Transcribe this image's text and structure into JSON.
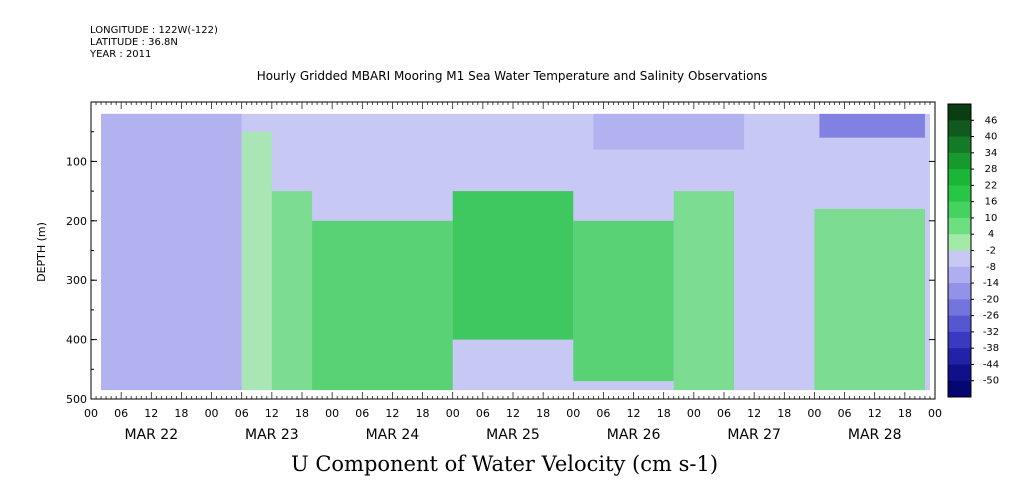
{
  "header": {
    "longitude": "LONGITUDE : 122W(-122)",
    "latitude": "LATITUDE : 36.8N",
    "year": "YEAR : 2011"
  },
  "chart_data": {
    "type": "heatmap",
    "title": "Hourly Gridded MBARI Mooring M1 Sea Water Temperature and Salinity Observations",
    "subtitle": "U Component of Water Velocity (cm s-1)",
    "ylabel": "DEPTH (m)",
    "xlabel": "",
    "ylim": [
      500,
      0
    ],
    "xlim_hours": [
      0,
      168
    ],
    "y_ticks": [
      "100",
      "200",
      "300",
      "400",
      "500"
    ],
    "y_tick_values": [
      100,
      200,
      300,
      400,
      500
    ],
    "x_hour_ticks": [
      "00",
      "06",
      "12",
      "18",
      "00",
      "06",
      "12",
      "18",
      "00",
      "06",
      "12",
      "18",
      "00",
      "06",
      "12",
      "18",
      "00",
      "06",
      "12",
      "18",
      "00",
      "06",
      "12",
      "18",
      "00",
      "06",
      "12",
      "18",
      "00"
    ],
    "day_labels": [
      "MAR 22",
      "MAR 23",
      "MAR 24",
      "MAR 25",
      "MAR 26",
      "MAR 27",
      "MAR 28"
    ],
    "data_depth_range": [
      20,
      485
    ],
    "data_time_start_hours": 2,
    "colorbar_labels": [
      "46",
      "40",
      "34",
      "28",
      "22",
      "16",
      "10",
      "4",
      "-2",
      "-8",
      "-14",
      "-20",
      "-26",
      "-32",
      "-38",
      "-44",
      "-50"
    ],
    "colorbar_colors": [
      "#0b3d12",
      "#0f5a1c",
      "#137a25",
      "#169a2e",
      "#1bb537",
      "#27c745",
      "#44d35e",
      "#6ddf80",
      "#a3eaa9",
      "#c8c8f4",
      "#aeaef0",
      "#9292e8",
      "#7474de",
      "#5656d0",
      "#3a3ac0",
      "#2222a6",
      "#10108a",
      "#060670"
    ],
    "missing_color": "#ffffff",
    "regions": [
      {
        "t": [
          2,
          30
        ],
        "d": [
          20,
          485
        ],
        "u": -6
      },
      {
        "t": [
          30,
          36
        ],
        "d": [
          50,
          485
        ],
        "u": 2
      },
      {
        "t": [
          36,
          44
        ],
        "d": [
          150,
          485
        ],
        "u": 12
      },
      {
        "t": [
          44,
          72
        ],
        "d": [
          200,
          485
        ],
        "u": 16
      },
      {
        "t": [
          72,
          96
        ],
        "d": [
          150,
          400
        ],
        "u": 22
      },
      {
        "t": [
          96,
          116
        ],
        "d": [
          200,
          470
        ],
        "u": 18
      },
      {
        "t": [
          116,
          128
        ],
        "d": [
          150,
          485
        ],
        "u": 10
      },
      {
        "t": [
          128,
          144
        ],
        "d": [
          150,
          485
        ],
        "u": -2
      },
      {
        "t": [
          144,
          166
        ],
        "d": [
          180,
          485
        ],
        "u": 12
      },
      {
        "t": [
          100,
          130
        ],
        "d": [
          20,
          80
        ],
        "u": -10
      },
      {
        "t": [
          145,
          166
        ],
        "d": [
          20,
          60
        ],
        "u": -20
      }
    ]
  }
}
